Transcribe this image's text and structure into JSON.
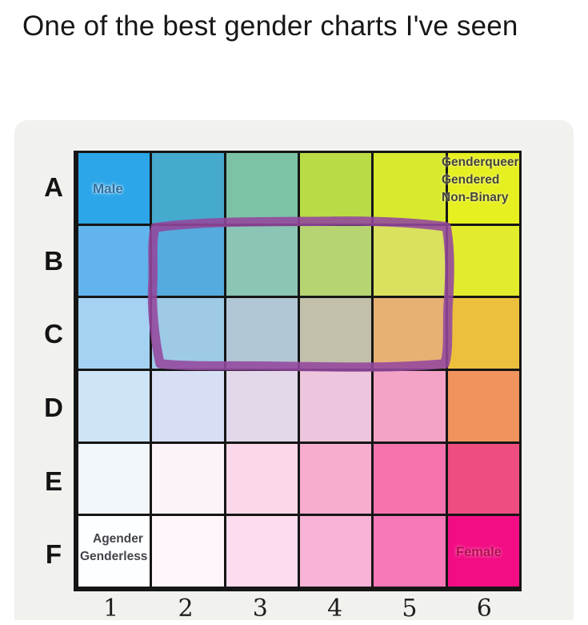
{
  "title": "One of the best gender charts I've seen",
  "chart_data": {
    "type": "heatmap",
    "description": "6x6 gender spectrum color grid with corner labels and a hand-drawn purple highlight rectangle",
    "row_labels": [
      "A",
      "B",
      "C",
      "D",
      "E",
      "F"
    ],
    "column_labels": [
      "1",
      "2",
      "3",
      "4",
      "5",
      "6"
    ],
    "cell_colors": [
      [
        "#2ca6e8",
        "#46a9ce",
        "#7cc3a6",
        "#b9dc46",
        "#d8e92e",
        "#e6ef20"
      ],
      [
        "#62b4ec",
        "#55abdd",
        "#8ac5b5",
        "#b6d471",
        "#d9e15f",
        "#e3eb2d"
      ],
      [
        "#a5d2f3",
        "#9ecae6",
        "#b1c7d5",
        "#c2c0ab",
        "#e6b173",
        "#ecc03d"
      ],
      [
        "#cee4f7",
        "#d7dff4",
        "#e3d8ea",
        "#edc5dc",
        "#f3a3c6",
        "#f0935d"
      ],
      [
        "#f2f7fb",
        "#fbf3f8",
        "#fbd8e9",
        "#f8adcf",
        "#f574ad",
        "#ee4d7f"
      ],
      [
        "#fdfeff",
        "#fef6fa",
        "#fcdcee",
        "#f9b3d6",
        "#f879b8",
        "#f20d85"
      ]
    ],
    "corner_labels": {
      "male": {
        "cell": "A1",
        "text": "Male",
        "text_color": "#2f6e9e"
      },
      "genderqueer": {
        "cell": "A6",
        "lines": [
          "Genderqueer",
          "Gendered",
          "Non-Binary"
        ],
        "text_color": "#45453a"
      },
      "agender": {
        "cell": "F1",
        "lines": [
          "Agender",
          "Genderless"
        ],
        "text_color": "#43434b"
      },
      "female": {
        "cell": "F6",
        "text": "Female",
        "text_color": "#b01050"
      }
    },
    "annotation": {
      "shape": "hand-drawn rectangle",
      "color": "#94489e",
      "covers_rows": [
        "B",
        "C"
      ],
      "covers_columns": [
        "2",
        "3",
        "4",
        "5"
      ]
    }
  }
}
